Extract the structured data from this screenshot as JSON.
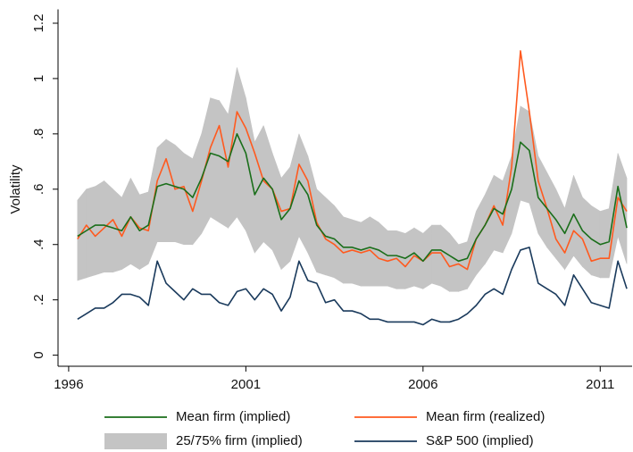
{
  "chart_data": {
    "type": "line",
    "ylabel": "Volatility",
    "x": [
      1996.25,
      1996.5,
      1996.75,
      1997,
      1997.25,
      1997.5,
      1997.75,
      1998,
      1998.25,
      1998.5,
      1998.75,
      1999,
      1999.25,
      1999.5,
      1999.75,
      2000,
      2000.25,
      2000.5,
      2000.75,
      2001,
      2001.25,
      2001.5,
      2001.75,
      2002,
      2002.25,
      2002.5,
      2002.75,
      2003,
      2003.25,
      2003.5,
      2003.75,
      2004,
      2004.25,
      2004.5,
      2004.75,
      2005,
      2005.25,
      2005.5,
      2005.75,
      2006,
      2006.25,
      2006.5,
      2006.75,
      2007,
      2007.25,
      2007.5,
      2007.75,
      2008,
      2008.25,
      2008.5,
      2008.75,
      2009,
      2009.25,
      2009.5,
      2009.75,
      2010,
      2010.25,
      2010.5,
      2010.75,
      2011,
      2011.25,
      2011.5,
      2011.75
    ],
    "series": [
      {
        "name": "Mean firm (implied)",
        "color": "#1a6e1a",
        "values": [
          0.43,
          0.45,
          0.47,
          0.47,
          0.46,
          0.45,
          0.5,
          0.45,
          0.47,
          0.61,
          0.62,
          0.61,
          0.6,
          0.57,
          0.64,
          0.73,
          0.72,
          0.7,
          0.8,
          0.73,
          0.58,
          0.64,
          0.6,
          0.49,
          0.53,
          0.63,
          0.58,
          0.47,
          0.43,
          0.42,
          0.39,
          0.39,
          0.38,
          0.39,
          0.38,
          0.36,
          0.36,
          0.35,
          0.37,
          0.34,
          0.38,
          0.38,
          0.36,
          0.34,
          0.35,
          0.42,
          0.47,
          0.53,
          0.51,
          0.6,
          0.77,
          0.74,
          0.57,
          0.53,
          0.49,
          0.44,
          0.51,
          0.45,
          0.42,
          0.4,
          0.41,
          0.61,
          0.46
        ]
      },
      {
        "name": "Mean firm (realized)",
        "color": "#ff5a1f",
        "values": [
          0.42,
          0.47,
          0.43,
          0.46,
          0.49,
          0.43,
          0.5,
          0.46,
          0.45,
          0.63,
          0.71,
          0.6,
          0.61,
          0.52,
          0.63,
          0.75,
          0.83,
          0.68,
          0.88,
          0.82,
          0.73,
          0.63,
          0.6,
          0.52,
          0.53,
          0.69,
          0.63,
          0.48,
          0.42,
          0.4,
          0.37,
          0.38,
          0.37,
          0.38,
          0.35,
          0.34,
          0.35,
          0.32,
          0.36,
          0.34,
          0.37,
          0.37,
          0.32,
          0.33,
          0.31,
          0.42,
          0.47,
          0.54,
          0.47,
          0.68,
          1.1,
          0.88,
          0.63,
          0.53,
          0.42,
          0.37,
          0.45,
          0.42,
          0.34,
          0.35,
          0.35,
          0.57,
          0.52
        ]
      },
      {
        "name": "25/75% firm (implied)",
        "color": "#c4c4c4",
        "type": "band",
        "lower": [
          0.27,
          0.28,
          0.29,
          0.3,
          0.3,
          0.31,
          0.33,
          0.31,
          0.33,
          0.41,
          0.41,
          0.41,
          0.4,
          0.4,
          0.44,
          0.5,
          0.48,
          0.46,
          0.5,
          0.45,
          0.37,
          0.41,
          0.38,
          0.31,
          0.34,
          0.43,
          0.37,
          0.3,
          0.29,
          0.28,
          0.26,
          0.26,
          0.25,
          0.25,
          0.25,
          0.25,
          0.24,
          0.24,
          0.25,
          0.24,
          0.26,
          0.25,
          0.23,
          0.23,
          0.24,
          0.29,
          0.33,
          0.38,
          0.37,
          0.44,
          0.56,
          0.55,
          0.44,
          0.39,
          0.35,
          0.31,
          0.36,
          0.32,
          0.29,
          0.28,
          0.28,
          0.43,
          0.33
        ],
        "upper": [
          0.56,
          0.6,
          0.61,
          0.63,
          0.6,
          0.57,
          0.64,
          0.58,
          0.59,
          0.75,
          0.78,
          0.76,
          0.73,
          0.71,
          0.8,
          0.93,
          0.92,
          0.87,
          1.04,
          0.93,
          0.77,
          0.83,
          0.73,
          0.64,
          0.68,
          0.8,
          0.72,
          0.6,
          0.57,
          0.54,
          0.5,
          0.49,
          0.48,
          0.5,
          0.48,
          0.45,
          0.45,
          0.44,
          0.46,
          0.44,
          0.47,
          0.47,
          0.44,
          0.4,
          0.41,
          0.52,
          0.58,
          0.65,
          0.63,
          0.72,
          0.9,
          0.88,
          0.72,
          0.66,
          0.6,
          0.53,
          0.65,
          0.57,
          0.54,
          0.52,
          0.53,
          0.73,
          0.64
        ]
      },
      {
        "name": "S&P 500 (implied)",
        "color": "#1a3a5c",
        "values": [
          0.13,
          0.15,
          0.17,
          0.17,
          0.19,
          0.22,
          0.22,
          0.21,
          0.18,
          0.34,
          0.26,
          0.23,
          0.2,
          0.24,
          0.22,
          0.22,
          0.19,
          0.18,
          0.23,
          0.24,
          0.2,
          0.24,
          0.22,
          0.16,
          0.21,
          0.34,
          0.27,
          0.26,
          0.19,
          0.2,
          0.16,
          0.16,
          0.15,
          0.13,
          0.13,
          0.12,
          0.12,
          0.12,
          0.12,
          0.11,
          0.13,
          0.12,
          0.12,
          0.13,
          0.15,
          0.18,
          0.22,
          0.24,
          0.22,
          0.31,
          0.38,
          0.39,
          0.26,
          0.24,
          0.22,
          0.18,
          0.29,
          0.24,
          0.19,
          0.18,
          0.17,
          0.34,
          0.24
        ]
      }
    ],
    "xlim": [
      1995.7,
      2011.9
    ],
    "xticks": [
      1996,
      2001,
      2006,
      2011
    ],
    "ylim": [
      -0.04,
      1.25
    ],
    "yticks": [
      0,
      {
        "value": 0.2,
        "label": ".2"
      },
      {
        "value": 0.4,
        "label": ".4"
      },
      {
        "value": 0.6,
        "label": ".6"
      },
      {
        "value": 0.8,
        "label": ".8"
      },
      1,
      1.2
    ],
    "legend": "bottom"
  }
}
